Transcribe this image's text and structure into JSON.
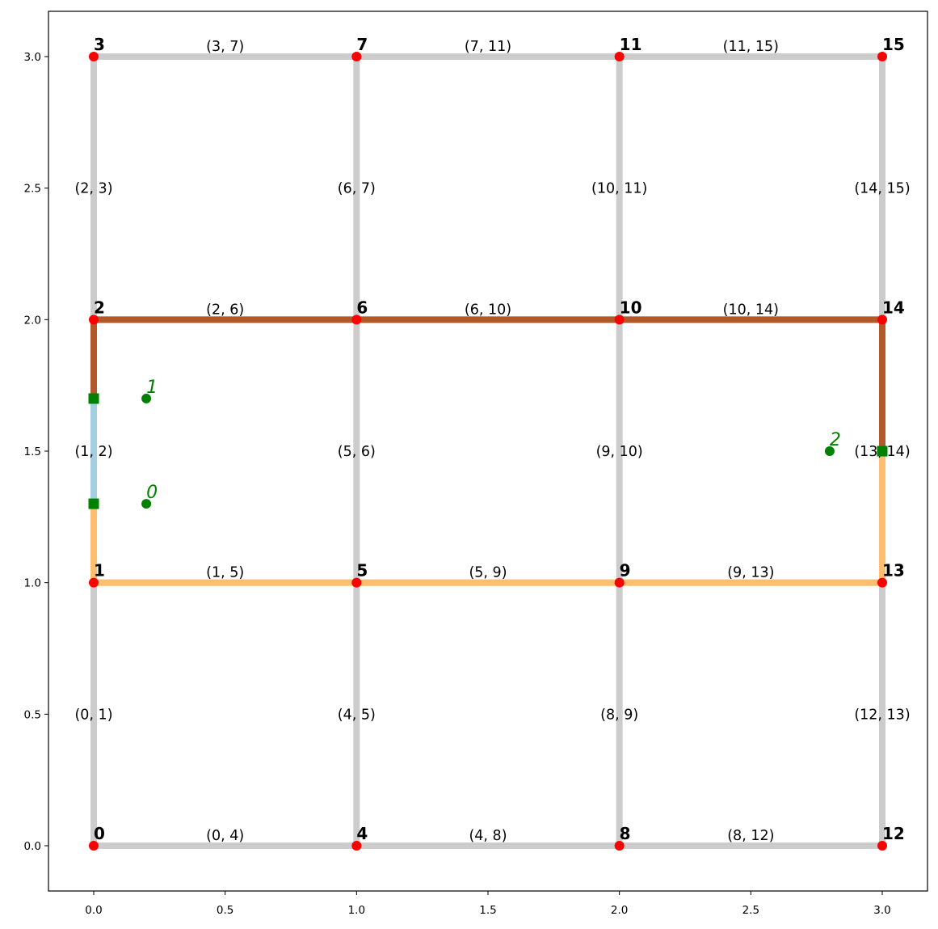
{
  "chart_data": {
    "type": "network-graph",
    "xlim": [
      -0.17,
      3.17
    ],
    "ylim": [
      -0.17,
      3.17
    ],
    "xticks": [
      "0.0",
      "0.5",
      "1.0",
      "1.5",
      "2.0",
      "2.5",
      "3.0"
    ],
    "yticks": [
      "0.0",
      "0.5",
      "1.0",
      "1.5",
      "2.0",
      "2.5",
      "3.0"
    ],
    "node_color": "#ff0000",
    "default_edge_color": "#cccccc",
    "nodes": [
      {
        "id": "0",
        "x": 0,
        "y": 0
      },
      {
        "id": "1",
        "x": 0,
        "y": 1
      },
      {
        "id": "2",
        "x": 0,
        "y": 2
      },
      {
        "id": "3",
        "x": 0,
        "y": 3
      },
      {
        "id": "4",
        "x": 1,
        "y": 0
      },
      {
        "id": "5",
        "x": 1,
        "y": 1
      },
      {
        "id": "6",
        "x": 1,
        "y": 2
      },
      {
        "id": "7",
        "x": 1,
        "y": 3
      },
      {
        "id": "8",
        "x": 2,
        "y": 0
      },
      {
        "id": "9",
        "x": 2,
        "y": 1
      },
      {
        "id": "10",
        "x": 2,
        "y": 2
      },
      {
        "id": "11",
        "x": 2,
        "y": 3
      },
      {
        "id": "12",
        "x": 3,
        "y": 0
      },
      {
        "id": "13",
        "x": 3,
        "y": 1
      },
      {
        "id": "14",
        "x": 3,
        "y": 2
      },
      {
        "id": "15",
        "x": 3,
        "y": 3
      }
    ],
    "edges": [
      {
        "label": "(0, 1)",
        "from": [
          0,
          0
        ],
        "to": [
          0,
          1
        ]
      },
      {
        "label": "(1, 2)",
        "from": [
          0,
          1
        ],
        "to": [
          0,
          2
        ]
      },
      {
        "label": "(2, 3)",
        "from": [
          0,
          2
        ],
        "to": [
          0,
          3
        ]
      },
      {
        "label": "(4, 5)",
        "from": [
          1,
          0
        ],
        "to": [
          1,
          1
        ]
      },
      {
        "label": "(5, 6)",
        "from": [
          1,
          1
        ],
        "to": [
          1,
          2
        ]
      },
      {
        "label": "(6, 7)",
        "from": [
          1,
          2
        ],
        "to": [
          1,
          3
        ]
      },
      {
        "label": "(8, 9)",
        "from": [
          2,
          0
        ],
        "to": [
          2,
          1
        ]
      },
      {
        "label": "(9, 10)",
        "from": [
          2,
          1
        ],
        "to": [
          2,
          2
        ]
      },
      {
        "label": "(10, 11)",
        "from": [
          2,
          2
        ],
        "to": [
          2,
          3
        ]
      },
      {
        "label": "(12, 13)",
        "from": [
          3,
          0
        ],
        "to": [
          3,
          1
        ]
      },
      {
        "label": "(13, 14)",
        "from": [
          3,
          1
        ],
        "to": [
          3,
          2
        ]
      },
      {
        "label": "(14, 15)",
        "from": [
          3,
          2
        ],
        "to": [
          3,
          3
        ]
      },
      {
        "label": "(0, 4)",
        "from": [
          0,
          0
        ],
        "to": [
          1,
          0
        ]
      },
      {
        "label": "(4, 8)",
        "from": [
          1,
          0
        ],
        "to": [
          2,
          0
        ]
      },
      {
        "label": "(8, 12)",
        "from": [
          2,
          0
        ],
        "to": [
          3,
          0
        ]
      },
      {
        "label": "(1, 5)",
        "from": [
          0,
          1
        ],
        "to": [
          1,
          1
        ]
      },
      {
        "label": "(5, 9)",
        "from": [
          1,
          1
        ],
        "to": [
          2,
          1
        ]
      },
      {
        "label": "(9, 13)",
        "from": [
          2,
          1
        ],
        "to": [
          3,
          1
        ]
      },
      {
        "label": "(2, 6)",
        "from": [
          0,
          2
        ],
        "to": [
          1,
          2
        ]
      },
      {
        "label": "(6, 10)",
        "from": [
          1,
          2
        ],
        "to": [
          2,
          2
        ]
      },
      {
        "label": "(10, 14)",
        "from": [
          2,
          2
        ],
        "to": [
          3,
          2
        ]
      },
      {
        "label": "(3, 7)",
        "from": [
          0,
          3
        ],
        "to": [
          1,
          3
        ]
      },
      {
        "label": "(7, 11)",
        "from": [
          1,
          3
        ],
        "to": [
          2,
          3
        ]
      },
      {
        "label": "(11, 15)",
        "from": [
          2,
          3
        ],
        "to": [
          3,
          3
        ]
      }
    ],
    "paths": [
      {
        "color": "#fdbf6f",
        "points": [
          [
            0,
            1.3
          ],
          [
            0,
            1
          ],
          [
            1,
            1
          ],
          [
            2,
            1
          ],
          [
            3,
            1
          ],
          [
            3,
            1.5
          ]
        ]
      },
      {
        "color": "#a6cee3",
        "points": [
          [
            0,
            1.3
          ],
          [
            0,
            1.7
          ]
        ]
      },
      {
        "color": "#b15928",
        "points": [
          [
            0,
            1.7
          ],
          [
            0,
            2
          ],
          [
            1,
            2
          ],
          [
            2,
            2
          ],
          [
            3,
            2
          ],
          [
            3,
            1.5
          ]
        ]
      }
    ],
    "projections": [
      {
        "x": 0,
        "y": 1.3
      },
      {
        "x": 0,
        "y": 1.7
      },
      {
        "x": 3,
        "y": 1.5
      }
    ],
    "points": [
      {
        "label": "0",
        "x": 0.2,
        "y": 1.3
      },
      {
        "label": "1",
        "x": 0.2,
        "y": 1.7
      },
      {
        "label": "2",
        "x": 2.8,
        "y": 1.5
      }
    ],
    "point_color": "#008000",
    "projection_color": "#008000"
  }
}
